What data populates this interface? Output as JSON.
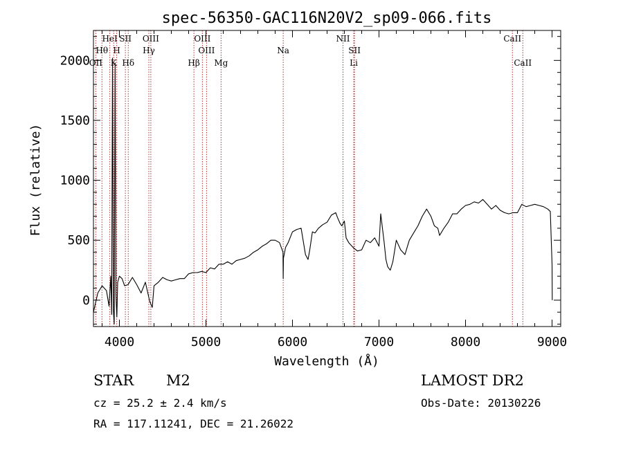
{
  "chart_data": {
    "type": "line",
    "title": "spec-56350-GAC116N20V2_sp09-066.fits",
    "xlabel": "Wavelength (Å)",
    "ylabel": "Flux (relative)",
    "xlim": [
      3700,
      9100
    ],
    "ylim": [
      -220,
      2250
    ],
    "xticks": [
      4000,
      5000,
      6000,
      7000,
      8000,
      9000
    ],
    "yticks": [
      0,
      500,
      1000,
      1500,
      2000
    ],
    "series": [
      {
        "x": [
          3700,
          3750,
          3800,
          3850,
          3880,
          3900,
          3910,
          3920,
          3930,
          3940,
          3950,
          3960,
          3970,
          3980,
          4000,
          4030,
          4060,
          4100,
          4150,
          4200,
          4250,
          4300,
          4350,
          4380,
          4400,
          4450,
          4500,
          4550,
          4600,
          4650,
          4700,
          4750,
          4800,
          4850,
          4900,
          4950,
          5000,
          5050,
          5100,
          5150,
          5200,
          5250,
          5300,
          5350,
          5400,
          5450,
          5500,
          5550,
          5600,
          5650,
          5700,
          5750,
          5800,
          5850,
          5890,
          5893,
          5896,
          5920,
          5950,
          6000,
          6050,
          6100,
          6150,
          6180,
          6200,
          6230,
          6260,
          6300,
          6350,
          6400,
          6450,
          6500,
          6520,
          6550,
          6570,
          6600,
          6620,
          6650,
          6700,
          6750,
          6800,
          6850,
          6900,
          6950,
          7000,
          7020,
          7040,
          7060,
          7080,
          7100,
          7130,
          7160,
          7200,
          7250,
          7300,
          7350,
          7400,
          7450,
          7500,
          7550,
          7600,
          7640,
          7680,
          7700,
          7750,
          7800,
          7850,
          7900,
          7950,
          8000,
          8050,
          8100,
          8150,
          8200,
          8250,
          8300,
          8350,
          8400,
          8450,
          8500,
          8550,
          8600,
          8650,
          8700,
          8750,
          8800,
          8850,
          8900,
          8950,
          8980,
          9000,
          9002
        ],
        "y": [
          -100,
          60,
          120,
          80,
          -50,
          200,
          -120,
          2020,
          -80,
          -200,
          1980,
          40,
          -140,
          150,
          200,
          180,
          120,
          130,
          190,
          130,
          60,
          150,
          -10,
          -60,
          120,
          150,
          190,
          170,
          160,
          170,
          180,
          180,
          220,
          230,
          230,
          240,
          230,
          270,
          260,
          300,
          300,
          320,
          300,
          330,
          340,
          350,
          370,
          400,
          420,
          450,
          470,
          500,
          500,
          480,
          400,
          180,
          350,
          440,
          480,
          570,
          590,
          600,
          380,
          340,
          420,
          570,
          560,
          600,
          630,
          650,
          710,
          730,
          690,
          640,
          620,
          660,
          520,
          480,
          440,
          410,
          420,
          500,
          480,
          520,
          450,
          720,
          600,
          480,
          340,
          280,
          250,
          320,
          500,
          420,
          380,
          500,
          560,
          620,
          700,
          760,
          700,
          620,
          600,
          540,
          600,
          650,
          720,
          720,
          760,
          790,
          800,
          820,
          810,
          840,
          800,
          760,
          790,
          750,
          730,
          720,
          730,
          730,
          800,
          780,
          790,
          800,
          790,
          780,
          760,
          740,
          300,
          0
        ]
      }
    ],
    "lines": [
      {
        "label": "HeI",
        "x": 3889,
        "row": 1
      },
      {
        "label": "SII",
        "x": 4069,
        "row": 1
      },
      {
        "label": "OIII",
        "x": 4363,
        "row": 1
      },
      {
        "label": "OIII",
        "x": 4959,
        "row": 1
      },
      {
        "label": "NII",
        "x": 6584,
        "row": 1
      },
      {
        "label": "CaII",
        "x": 8542,
        "row": 1
      },
      {
        "label": "Hθ",
        "x": 3798,
        "row": 2
      },
      {
        "label": "H",
        "x": 3969,
        "row": 2
      },
      {
        "label": "Hγ",
        "x": 4340,
        "row": 2
      },
      {
        "label": "OIII",
        "x": 5007,
        "row": 2
      },
      {
        "label": "Na",
        "x": 5893,
        "row": 2
      },
      {
        "label": "SII",
        "x": 6717,
        "row": 2
      },
      {
        "label": "OII",
        "x": 3727,
        "row": 3
      },
      {
        "label": "K",
        "x": 3934,
        "row": 3
      },
      {
        "label": "Hδ",
        "x": 4102,
        "row": 3
      },
      {
        "label": "Hβ",
        "x": 4861,
        "row": 3
      },
      {
        "label": "Mg",
        "x": 5175,
        "row": 3
      },
      {
        "label": "Li",
        "x": 6708,
        "row": 3
      },
      {
        "label": "CaII",
        "x": 8662,
        "row": 3
      }
    ],
    "grid": false,
    "legend": "none"
  },
  "info": {
    "class": "STAR",
    "subclass": "M2",
    "survey": "LAMOST DR2",
    "cz": "cz = 25.2 ± 2.4 km/s",
    "obs_date": "Obs-Date: 20130226",
    "radec": "RA = 117.11241, DEC =  21.26022"
  }
}
